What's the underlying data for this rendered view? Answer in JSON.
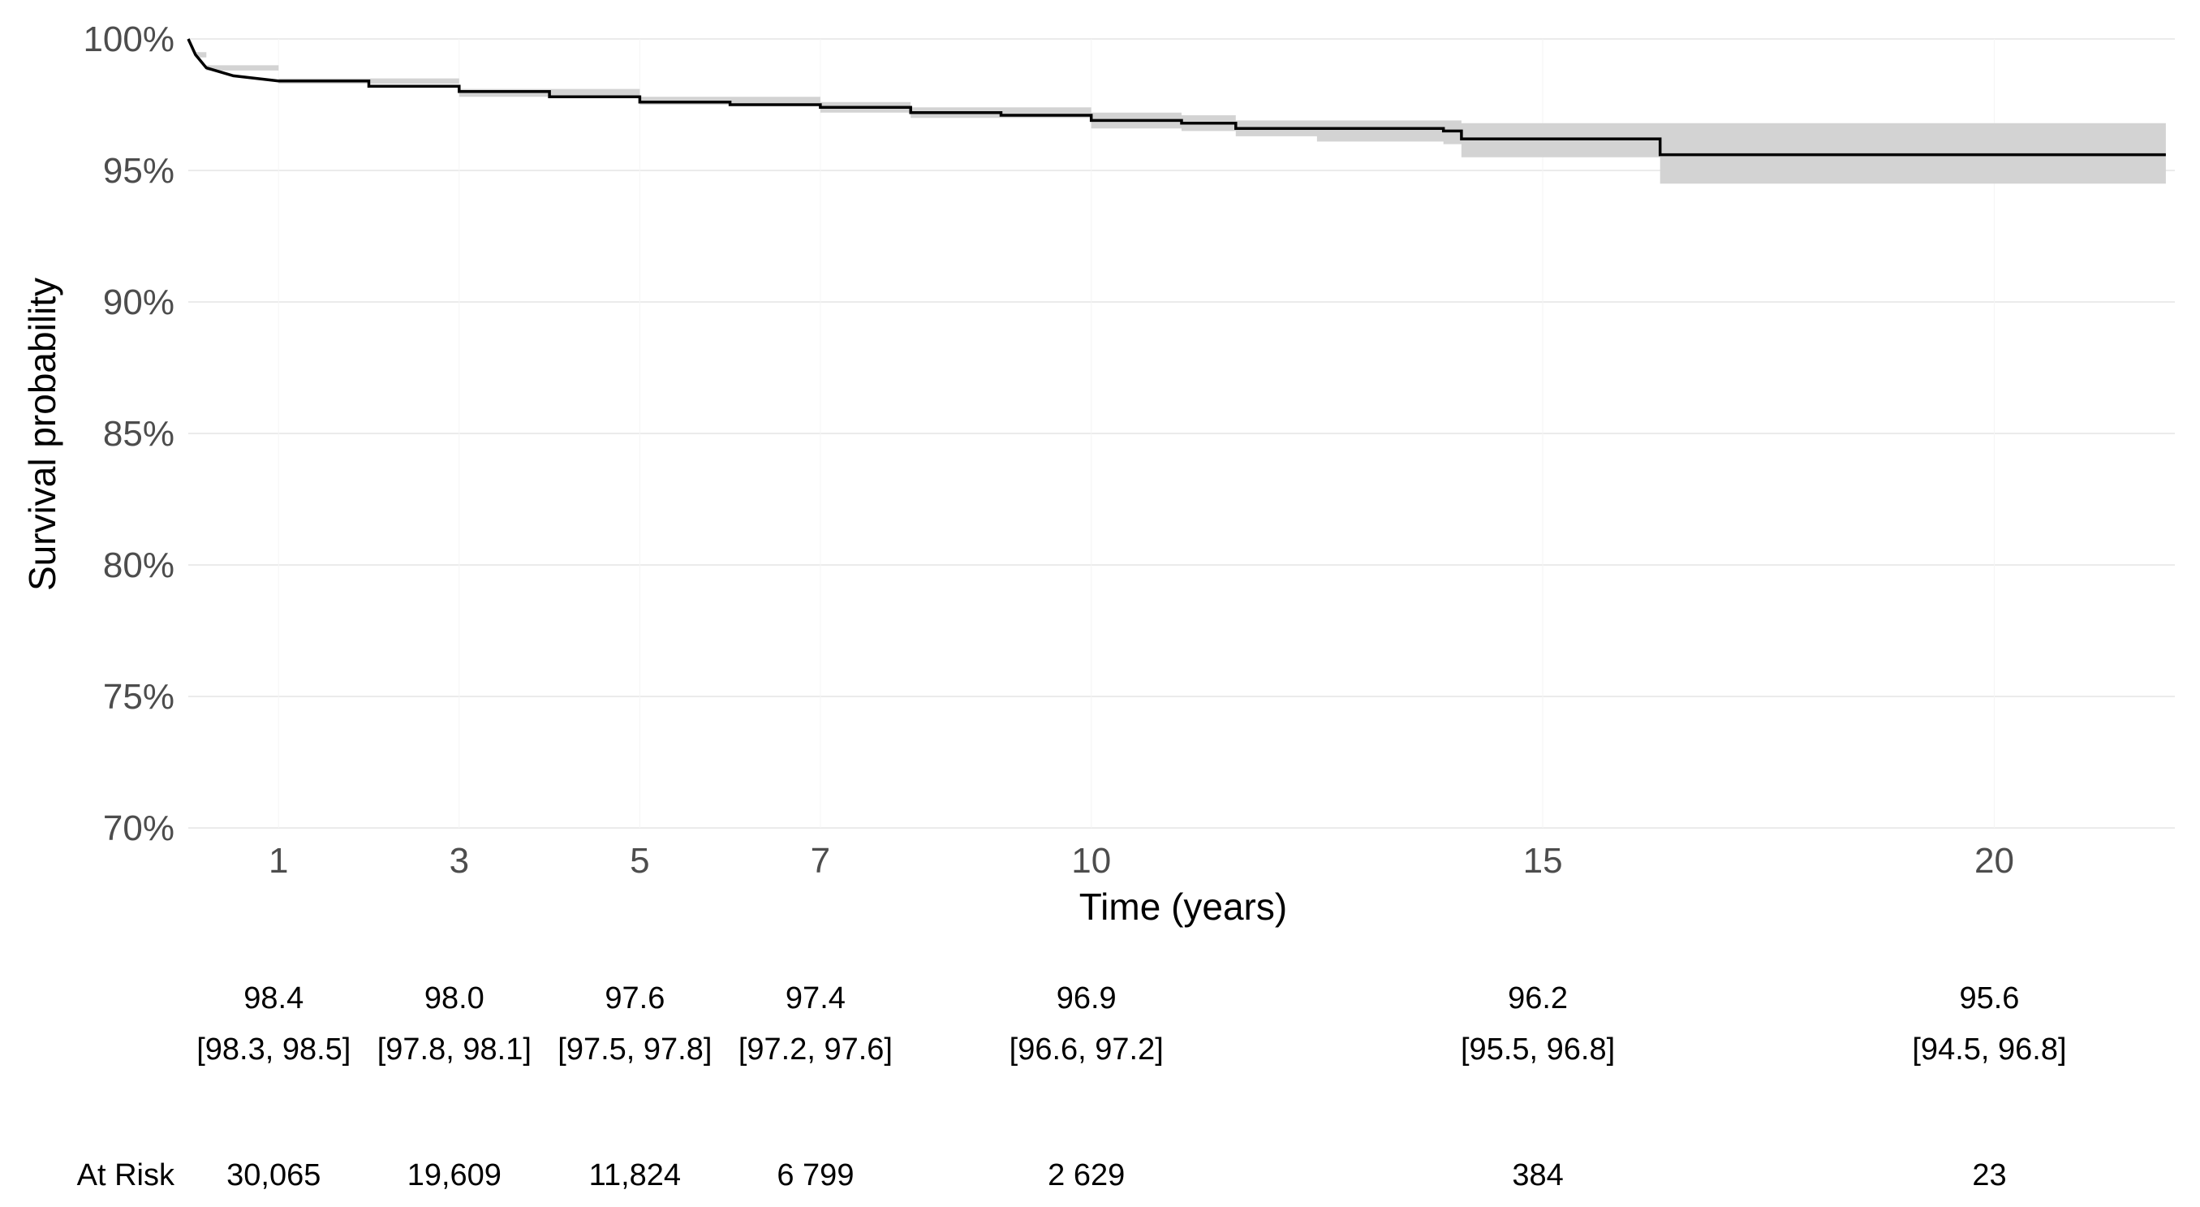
{
  "chart_data": {
    "type": "line",
    "subtype": "kaplan-meier survival curve with confidence band",
    "xlabel": "Time (years)",
    "ylabel": "Survival probability",
    "xlim": [
      0,
      22
    ],
    "ylim": [
      70,
      100
    ],
    "y_ticks": [
      {
        "value": 100,
        "label": "100%"
      },
      {
        "value": 95,
        "label": "95%"
      },
      {
        "value": 90,
        "label": "90%"
      },
      {
        "value": 85,
        "label": "85%"
      },
      {
        "value": 80,
        "label": "80%"
      },
      {
        "value": 75,
        "label": "75%"
      },
      {
        "value": 70,
        "label": "70%"
      }
    ],
    "x_ticks": [
      {
        "value": 1,
        "label": "1"
      },
      {
        "value": 3,
        "label": "3"
      },
      {
        "value": 5,
        "label": "5"
      },
      {
        "value": 7,
        "label": "7"
      },
      {
        "value": 10,
        "label": "10"
      },
      {
        "value": 15,
        "label": "15"
      },
      {
        "value": 20,
        "label": "20"
      }
    ],
    "grid": true,
    "colors": {
      "line": "#000000",
      "band": "#d3d3d3",
      "grid": "#ebebeb",
      "tick_text": "#4d4d4d"
    },
    "curve": [
      {
        "x": 0,
        "y": 100.0
      },
      {
        "x": 0.08,
        "y": 99.4
      },
      {
        "x": 0.2,
        "y": 98.9
      },
      {
        "x": 0.5,
        "y": 98.6
      },
      {
        "x": 1,
        "y": 98.4
      },
      {
        "x": 2,
        "y": 98.2
      },
      {
        "x": 3,
        "y": 98.0
      },
      {
        "x": 4,
        "y": 97.8
      },
      {
        "x": 5,
        "y": 97.6
      },
      {
        "x": 6,
        "y": 97.5
      },
      {
        "x": 7,
        "y": 97.4
      },
      {
        "x": 8,
        "y": 97.2
      },
      {
        "x": 9,
        "y": 97.1
      },
      {
        "x": 10,
        "y": 96.9
      },
      {
        "x": 11,
        "y": 96.8
      },
      {
        "x": 11.6,
        "y": 96.6
      },
      {
        "x": 12.5,
        "y": 96.6
      },
      {
        "x": 13.9,
        "y": 96.5
      },
      {
        "x": 14.1,
        "y": 96.2
      },
      {
        "x": 16.3,
        "y": 96.2
      },
      {
        "x": 16.3,
        "y": 95.6
      },
      {
        "x": 21.9,
        "y": 95.6
      }
    ],
    "band": [
      {
        "x": 0,
        "lo": 100.0,
        "hi": 100.0
      },
      {
        "x": 0.08,
        "lo": 99.3,
        "hi": 99.5
      },
      {
        "x": 0.2,
        "lo": 98.8,
        "hi": 99.0
      },
      {
        "x": 1,
        "lo": 98.3,
        "hi": 98.5
      },
      {
        "x": 3,
        "lo": 97.8,
        "hi": 98.1
      },
      {
        "x": 5,
        "lo": 97.5,
        "hi": 97.8
      },
      {
        "x": 7,
        "lo": 97.2,
        "hi": 97.6
      },
      {
        "x": 8,
        "lo": 97.0,
        "hi": 97.4
      },
      {
        "x": 10,
        "lo": 96.6,
        "hi": 97.2
      },
      {
        "x": 11,
        "lo": 96.5,
        "hi": 97.1
      },
      {
        "x": 11.6,
        "lo": 96.3,
        "hi": 96.9
      },
      {
        "x": 12.5,
        "lo": 96.1,
        "hi": 96.9
      },
      {
        "x": 13.9,
        "lo": 96.0,
        "hi": 96.9
      },
      {
        "x": 14.1,
        "lo": 95.5,
        "hi": 96.8
      },
      {
        "x": 16.3,
        "lo": 95.5,
        "hi": 96.8
      },
      {
        "x": 16.3,
        "lo": 94.5,
        "hi": 96.8
      },
      {
        "x": 21.9,
        "lo": 94.5,
        "hi": 96.8
      }
    ],
    "estimates": [
      {
        "x": 1,
        "value": "98.4",
        "ci": "[98.3, 98.5]"
      },
      {
        "x": 3,
        "value": "98.0",
        "ci": "[97.8, 98.1]"
      },
      {
        "x": 5,
        "value": "97.6",
        "ci": "[97.5, 97.8]"
      },
      {
        "x": 7,
        "value": "97.4",
        "ci": "[97.2, 97.6]"
      },
      {
        "x": 10,
        "value": "96.9",
        "ci": "[96.6, 97.2]"
      },
      {
        "x": 15,
        "value": "96.2",
        "ci": "[95.5, 96.8]"
      },
      {
        "x": 20,
        "value": "95.6",
        "ci": "[94.5, 96.8]"
      }
    ],
    "at_risk_label": "At Risk",
    "at_risk": [
      {
        "x": 1,
        "value": "30,065"
      },
      {
        "x": 3,
        "value": "19,609"
      },
      {
        "x": 5,
        "value": "11,824"
      },
      {
        "x": 7,
        "value": "6 799"
      },
      {
        "x": 10,
        "value": "2 629"
      },
      {
        "x": 15,
        "value": "384"
      },
      {
        "x": 20,
        "value": "23"
      }
    ]
  }
}
